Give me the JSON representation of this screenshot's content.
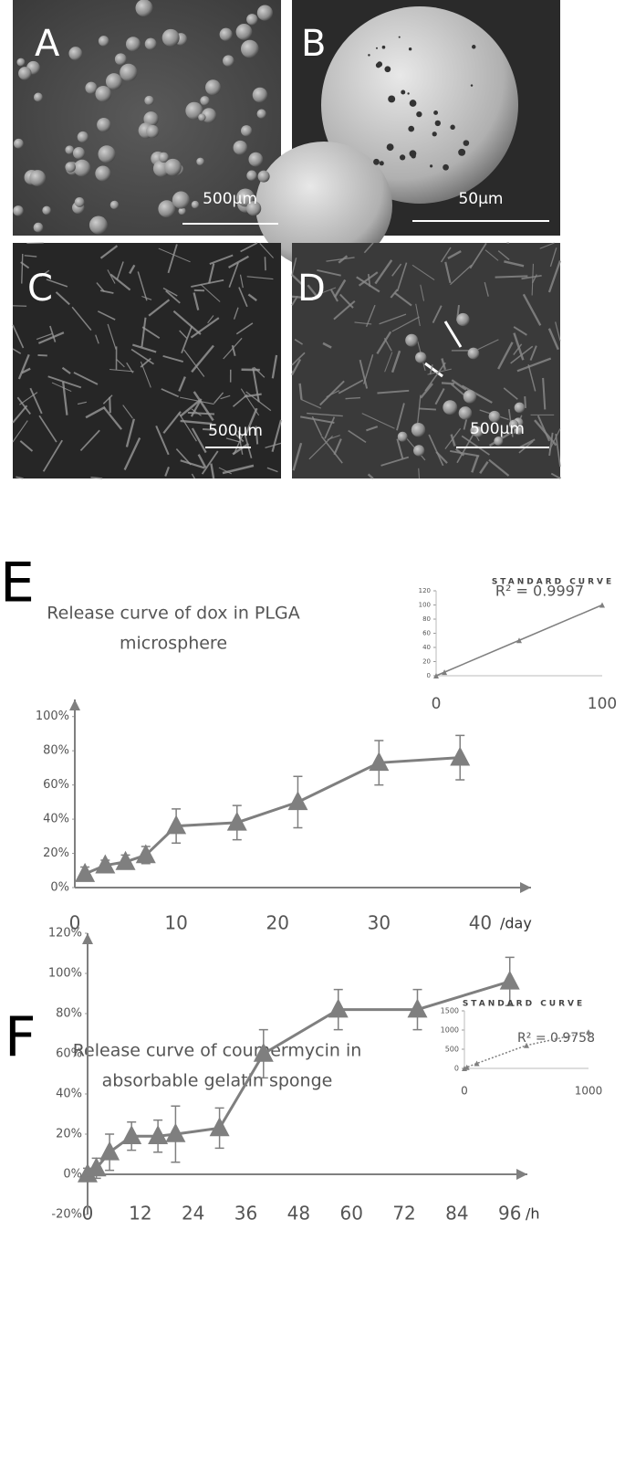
{
  "panels": [
    {
      "label": "A",
      "scale_bar": "500µm"
    },
    {
      "label": "B",
      "scale_bar": "50µm"
    },
    {
      "label": "C",
      "scale_bar": "500µm"
    },
    {
      "label": "D",
      "scale_bar": "500µm"
    }
  ],
  "chart_data": [
    {
      "type": "line",
      "label": "E",
      "title": [
        "Release curve of dox in PLGA",
        "microsphere"
      ],
      "x_label": "/day",
      "color": "#7f7f7f",
      "x": [
        1,
        3,
        5,
        7,
        10,
        16,
        22,
        30,
        38
      ],
      "values": [
        8,
        13,
        15,
        19,
        36,
        38,
        50,
        73,
        76
      ],
      "errors": [
        4,
        3,
        4,
        5,
        10,
        10,
        15,
        13,
        13
      ],
      "xlim": [
        0,
        45
      ],
      "xticks": [
        0,
        10,
        20,
        30,
        40
      ],
      "ylim": [
        0,
        110
      ],
      "yticks": [
        {
          "value": 0,
          "label": "0%"
        },
        {
          "value": 20,
          "label": "20%"
        },
        {
          "value": 40,
          "label": "40%"
        },
        {
          "value": 60,
          "label": "60%"
        },
        {
          "value": 80,
          "label": "80%"
        },
        {
          "value": 100,
          "label": "100%"
        }
      ]
    },
    {
      "type": "scatter",
      "title": "STANDARD CURVE",
      "annotation": "R² = 0.9997",
      "color": "#7f7f7f",
      "line_style": "solid",
      "x": [
        0,
        5,
        50,
        100
      ],
      "values": [
        0,
        5,
        50,
        100
      ],
      "xlim": [
        0,
        100
      ],
      "xticks": [
        0,
        100
      ],
      "ylim": [
        0,
        120
      ],
      "yticks": [
        0,
        20,
        40,
        60,
        80,
        100,
        120
      ]
    },
    {
      "type": "line",
      "label": "F",
      "title": [
        "Release curve of coumermycin  in",
        "absorbable gelatin sponge"
      ],
      "x_label": "/h",
      "color": "#7f7f7f",
      "x": [
        0,
        2,
        5,
        10,
        16,
        20,
        30,
        40,
        57,
        75,
        96
      ],
      "values": [
        0,
        3,
        11,
        19,
        19,
        20,
        23,
        60,
        82,
        82,
        96
      ],
      "errors": [
        3,
        5,
        9,
        7,
        8,
        14,
        10,
        12,
        10,
        10,
        12
      ],
      "xlim": [
        0,
        100
      ],
      "xticks": [
        0,
        12,
        24,
        36,
        48,
        60,
        72,
        84,
        96
      ],
      "ylim": [
        -20,
        120
      ],
      "yticks": [
        {
          "value": -20,
          "label": "-20%"
        },
        {
          "value": 0,
          "label": "0%"
        },
        {
          "value": 20,
          "label": "20%"
        },
        {
          "value": 40,
          "label": "40%"
        },
        {
          "value": 60,
          "label": "60%"
        },
        {
          "value": 80,
          "label": "80%"
        },
        {
          "value": 100,
          "label": "100%"
        },
        {
          "value": 120,
          "label": "120%"
        }
      ]
    },
    {
      "type": "scatter",
      "title": "STANDARD CURVE",
      "annotation": "R² = 0.9758",
      "color": "#7f7f7f",
      "line_style": "dotted",
      "x": [
        0,
        20,
        100,
        500,
        1000
      ],
      "values": [
        0,
        30,
        130,
        600,
        950
      ],
      "xlim": [
        0,
        1000
      ],
      "xticks": [
        0,
        1000
      ],
      "ylim": [
        0,
        1500
      ],
      "yticks": [
        0,
        500,
        1000,
        1500
      ]
    }
  ]
}
